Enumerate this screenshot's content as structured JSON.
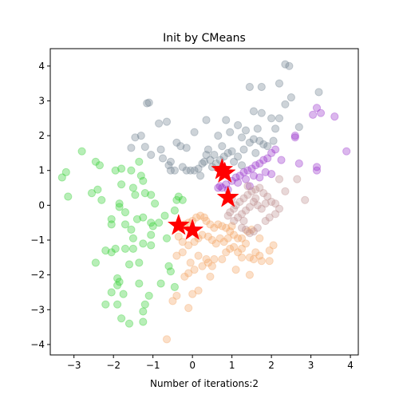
{
  "chart_data": {
    "type": "scatter",
    "title": "Init by CMeans",
    "xlabel": "Number of iterations:2",
    "ylabel": "",
    "xlim": [
      -3.6,
      4.2
    ],
    "ylim": [
      -4.3,
      4.5
    ],
    "xticks": [
      -3,
      -2,
      -1,
      0,
      1,
      2,
      3,
      4
    ],
    "yticks": [
      -4,
      -3,
      -2,
      -1,
      0,
      1,
      2,
      3,
      4
    ],
    "grid": false,
    "legend": "none",
    "point_opacity": 0.35,
    "series": [
      {
        "color": "#708090",
        "points": [
          [
            -1.1,
            2.95
          ],
          [
            -1.15,
            2.93
          ],
          [
            -0.85,
            2.35
          ],
          [
            -0.65,
            2.4
          ],
          [
            -1.3,
            2.0
          ],
          [
            -1.45,
            1.95
          ],
          [
            -1.55,
            1.65
          ],
          [
            -1.2,
            1.68
          ],
          [
            -1.05,
            1.45
          ],
          [
            -0.8,
            1.6
          ],
          [
            -0.75,
            1.35
          ],
          [
            -0.55,
            1.25
          ],
          [
            -0.6,
            1.15
          ],
          [
            -0.45,
            1.0
          ],
          [
            -0.25,
            1.1
          ],
          [
            -0.15,
            1.0
          ],
          [
            -0.05,
            1.0
          ],
          [
            0.05,
            1.0
          ],
          [
            0.15,
            1.05
          ],
          [
            0.25,
            1.2
          ],
          [
            0.35,
            1.45
          ],
          [
            0.4,
            1.6
          ],
          [
            0.45,
            1.3
          ],
          [
            0.5,
            1.1
          ],
          [
            0.6,
            1.2
          ],
          [
            0.7,
            1.3
          ],
          [
            0.8,
            1.4
          ],
          [
            0.9,
            1.5
          ],
          [
            1.0,
            1.55
          ],
          [
            1.15,
            1.4
          ],
          [
            1.3,
            1.6
          ],
          [
            1.45,
            1.8
          ],
          [
            1.55,
            1.9
          ],
          [
            1.7,
            1.85
          ],
          [
            1.8,
            1.75
          ],
          [
            1.9,
            1.7
          ],
          [
            2.05,
            1.85
          ],
          [
            2.1,
            2.2
          ],
          [
            2.2,
            2.5
          ],
          [
            2.35,
            2.9
          ],
          [
            2.5,
            3.1
          ],
          [
            2.2,
            3.5
          ],
          [
            2.35,
            4.05
          ],
          [
            2.45,
            4.0
          ],
          [
            1.75,
            3.4
          ],
          [
            1.45,
            3.4
          ],
          [
            1.55,
            2.7
          ],
          [
            1.75,
            2.65
          ],
          [
            2.0,
            2.5
          ],
          [
            1.65,
            2.2
          ],
          [
            1.35,
            2.15
          ],
          [
            1.15,
            2.3
          ],
          [
            0.85,
            2.45
          ],
          [
            0.65,
            2.0
          ],
          [
            0.35,
            2.45
          ],
          [
            0.05,
            2.1
          ],
          [
            -0.15,
            1.65
          ],
          [
            -0.3,
            1.7
          ],
          [
            -0.4,
            1.8
          ],
          [
            0.95,
            2.1
          ],
          [
            1.25,
            1.95
          ],
          [
            2.7,
            2.25
          ],
          [
            3.2,
            3.25
          ],
          [
            0.2,
            0.85
          ],
          [
            -0.55,
            1.0
          ],
          [
            1.05,
            1.25
          ],
          [
            1.25,
            1.15
          ],
          [
            0.55,
            1.45
          ],
          [
            0.75,
            1.7
          ],
          [
            0.3,
            1.25
          ],
          [
            1.6,
            1.5
          ]
        ]
      },
      {
        "color": "#9932CC",
        "points": [
          [
            0.7,
            0.55
          ],
          [
            0.75,
            0.5
          ],
          [
            0.85,
            0.6
          ],
          [
            1.0,
            0.7
          ],
          [
            1.1,
            0.8
          ],
          [
            1.2,
            0.85
          ],
          [
            1.3,
            0.95
          ],
          [
            1.4,
            1.0
          ],
          [
            1.5,
            1.05
          ],
          [
            1.6,
            1.15
          ],
          [
            1.7,
            1.2
          ],
          [
            1.8,
            1.3
          ],
          [
            1.9,
            1.35
          ],
          [
            2.0,
            1.5
          ],
          [
            2.1,
            1.6
          ],
          [
            2.6,
            2.0
          ],
          [
            2.6,
            1.95
          ],
          [
            3.15,
            2.8
          ],
          [
            3.25,
            2.65
          ],
          [
            3.6,
            2.55
          ],
          [
            3.05,
            2.6
          ],
          [
            3.15,
            1.1
          ],
          [
            3.15,
            1.0
          ],
          [
            3.9,
            1.55
          ],
          [
            2.7,
            1.2
          ],
          [
            1.55,
            0.85
          ],
          [
            1.85,
            0.95
          ],
          [
            1.35,
            0.75
          ],
          [
            1.15,
            0.65
          ],
          [
            1.7,
            0.8
          ],
          [
            2.0,
            0.9
          ],
          [
            2.25,
            1.3
          ],
          [
            0.65,
            0.5
          ],
          [
            1.45,
            0.55
          ],
          [
            0.9,
            0.45
          ]
        ]
      },
      {
        "color": "#32CD32",
        "points": [
          [
            -2.8,
            1.55
          ],
          [
            -3.2,
            0.95
          ],
          [
            -3.15,
            0.25
          ],
          [
            -3.3,
            0.8
          ],
          [
            -2.45,
            1.25
          ],
          [
            -2.4,
            0.45
          ],
          [
            -2.55,
            0.35
          ],
          [
            -2.3,
            0.15
          ],
          [
            -1.95,
            1.0
          ],
          [
            -1.8,
            1.05
          ],
          [
            -1.55,
            1.0
          ],
          [
            -1.35,
            1.25
          ],
          [
            -1.3,
            0.85
          ],
          [
            -1.25,
            0.7
          ],
          [
            -1.5,
            0.5
          ],
          [
            -1.45,
            0.3
          ],
          [
            -1.2,
            0.35
          ],
          [
            -1.05,
            0.3
          ],
          [
            -1.85,
            0.05
          ],
          [
            -1.85,
            -0.05
          ],
          [
            -2.05,
            -0.4
          ],
          [
            -2.05,
            -0.55
          ],
          [
            -1.7,
            -0.55
          ],
          [
            -1.55,
            -0.7
          ],
          [
            -1.4,
            -0.4
          ],
          [
            -1.25,
            -0.35
          ],
          [
            -1.05,
            -0.5
          ],
          [
            -1.0,
            -0.6
          ],
          [
            -1.5,
            -0.95
          ],
          [
            -1.25,
            -1.1
          ],
          [
            -1.05,
            -1.15
          ],
          [
            -0.7,
            -0.3
          ],
          [
            -0.45,
            -0.15
          ],
          [
            -0.35,
            0.25
          ],
          [
            -0.4,
            0.15
          ],
          [
            -0.25,
            0.15
          ],
          [
            -2.45,
            -1.65
          ],
          [
            -2.2,
            -1.3
          ],
          [
            -2.05,
            -1.35
          ],
          [
            -1.95,
            -1.25
          ],
          [
            -1.7,
            -1.25
          ],
          [
            -1.5,
            -1.25
          ],
          [
            -1.35,
            -1.65
          ],
          [
            -1.6,
            -1.7
          ],
          [
            -1.9,
            -2.1
          ],
          [
            -1.85,
            -2.2
          ],
          [
            -1.9,
            -2.3
          ],
          [
            -1.75,
            -2.55
          ],
          [
            -2.05,
            -2.5
          ],
          [
            -2.2,
            -2.85
          ],
          [
            -1.9,
            -2.85
          ],
          [
            -1.8,
            -3.25
          ],
          [
            -1.6,
            -3.4
          ],
          [
            -1.25,
            -3.35
          ],
          [
            -1.25,
            -3.05
          ],
          [
            -1.2,
            -2.85
          ],
          [
            -1.1,
            -2.6
          ],
          [
            -0.8,
            -2.25
          ],
          [
            -1.35,
            -2.25
          ],
          [
            -0.6,
            -1.75
          ],
          [
            -0.55,
            -1.9
          ],
          [
            -0.45,
            -2.35
          ],
          [
            -0.65,
            -0.95
          ],
          [
            -0.85,
            -0.5
          ],
          [
            -1.7,
            -0.2
          ],
          [
            -1.8,
            0.6
          ],
          [
            -0.35,
            -0.6
          ],
          [
            -0.95,
            0.05
          ],
          [
            -2.35,
            1.15
          ],
          [
            -1.05,
            -0.85
          ]
        ]
      },
      {
        "color": "#F4A460",
        "points": [
          [
            -0.65,
            -3.85
          ],
          [
            -0.1,
            -2.95
          ],
          [
            -0.5,
            -2.75
          ],
          [
            -0.4,
            -2.6
          ],
          [
            0.0,
            -2.55
          ],
          [
            0.15,
            -2.45
          ],
          [
            -0.2,
            -2.05
          ],
          [
            -0.1,
            -1.95
          ],
          [
            0.05,
            -1.85
          ],
          [
            0.25,
            -1.75
          ],
          [
            0.4,
            -1.65
          ],
          [
            0.55,
            -1.55
          ],
          [
            0.5,
            -1.75
          ],
          [
            0.75,
            -1.55
          ],
          [
            0.85,
            -1.35
          ],
          [
            0.95,
            -1.25
          ],
          [
            1.05,
            -1.2
          ],
          [
            1.15,
            -1.35
          ],
          [
            1.25,
            -1.25
          ],
          [
            1.35,
            -1.1
          ],
          [
            1.45,
            -1.5
          ],
          [
            1.55,
            -1.55
          ],
          [
            1.6,
            -1.35
          ],
          [
            1.7,
            -1.45
          ],
          [
            1.75,
            -1.6
          ],
          [
            1.95,
            -1.6
          ],
          [
            1.95,
            -1.3
          ],
          [
            2.05,
            -1.15
          ],
          [
            1.1,
            -1.85
          ],
          [
            1.45,
            -2.0
          ],
          [
            1.25,
            -1.5
          ],
          [
            1.25,
            -0.95
          ],
          [
            1.15,
            -0.95
          ],
          [
            1.05,
            -0.85
          ],
          [
            0.95,
            -0.75
          ],
          [
            0.85,
            -0.65
          ],
          [
            0.75,
            -0.6
          ],
          [
            0.65,
            -0.55
          ],
          [
            0.55,
            -0.65
          ],
          [
            0.45,
            -0.55
          ],
          [
            0.35,
            -0.45
          ],
          [
            0.3,
            -0.35
          ],
          [
            0.2,
            -0.3
          ],
          [
            0.1,
            -0.35
          ],
          [
            0.0,
            -0.45
          ],
          [
            -0.1,
            -0.5
          ],
          [
            -0.2,
            -0.55
          ],
          [
            -0.3,
            -0.65
          ],
          [
            -0.35,
            -0.9
          ],
          [
            -0.25,
            -1.05
          ],
          [
            -0.1,
            -1.15
          ],
          [
            0.05,
            -1.05
          ],
          [
            0.15,
            -0.95
          ],
          [
            0.25,
            -0.85
          ],
          [
            0.4,
            -0.9
          ],
          [
            0.5,
            -1.0
          ],
          [
            0.6,
            -1.1
          ],
          [
            0.7,
            -0.95
          ],
          [
            0.8,
            -1.05
          ],
          [
            0.9,
            -0.95
          ],
          [
            1.0,
            -0.6
          ],
          [
            1.4,
            -0.75
          ],
          [
            1.5,
            -0.7
          ],
          [
            0.45,
            -2.05
          ],
          [
            0.35,
            -1.55
          ],
          [
            0.15,
            -1.45
          ],
          [
            -0.25,
            -1.35
          ],
          [
            -0.4,
            -1.45
          ],
          [
            -0.05,
            -1.65
          ],
          [
            1.7,
            -0.95
          ]
        ]
      },
      {
        "color": "#BC8F8F",
        "points": [
          [
            0.9,
            -0.3
          ],
          [
            0.95,
            -0.2
          ],
          [
            1.05,
            -0.1
          ],
          [
            1.1,
            0.0
          ],
          [
            1.2,
            0.1
          ],
          [
            1.3,
            0.2
          ],
          [
            1.4,
            0.3
          ],
          [
            1.5,
            0.4
          ],
          [
            1.6,
            0.45
          ],
          [
            1.7,
            0.5
          ],
          [
            1.8,
            0.35
          ],
          [
            1.9,
            0.25
          ],
          [
            2.0,
            0.1
          ],
          [
            2.1,
            0.05
          ],
          [
            2.2,
            -0.1
          ],
          [
            2.1,
            -0.25
          ],
          [
            1.95,
            -0.35
          ],
          [
            1.75,
            -0.1
          ],
          [
            1.65,
            0.0
          ],
          [
            1.55,
            0.1
          ],
          [
            1.45,
            -0.05
          ],
          [
            1.35,
            -0.15
          ],
          [
            1.25,
            -0.25
          ],
          [
            1.15,
            -0.35
          ],
          [
            1.05,
            -0.45
          ],
          [
            1.25,
            -0.65
          ],
          [
            1.35,
            -0.7
          ],
          [
            1.45,
            -0.8
          ],
          [
            1.55,
            -0.75
          ],
          [
            1.65,
            -0.65
          ],
          [
            1.85,
            -0.45
          ],
          [
            2.2,
            0.75
          ],
          [
            2.85,
            0.15
          ],
          [
            2.65,
            0.75
          ],
          [
            1.4,
            0.55
          ],
          [
            1.6,
            0.2
          ],
          [
            1.3,
            -0.45
          ],
          [
            2.35,
            0.4
          ],
          [
            1.85,
            0.05
          ],
          [
            1.0,
            0.2
          ]
        ]
      }
    ],
    "centers": {
      "color": "#FF0000",
      "points": [
        [
          0.75,
          1.02
        ],
        [
          0.82,
          0.92
        ],
        [
          0.9,
          0.22
        ],
        [
          -0.35,
          -0.58
        ],
        [
          0.0,
          -0.72
        ]
      ]
    }
  }
}
